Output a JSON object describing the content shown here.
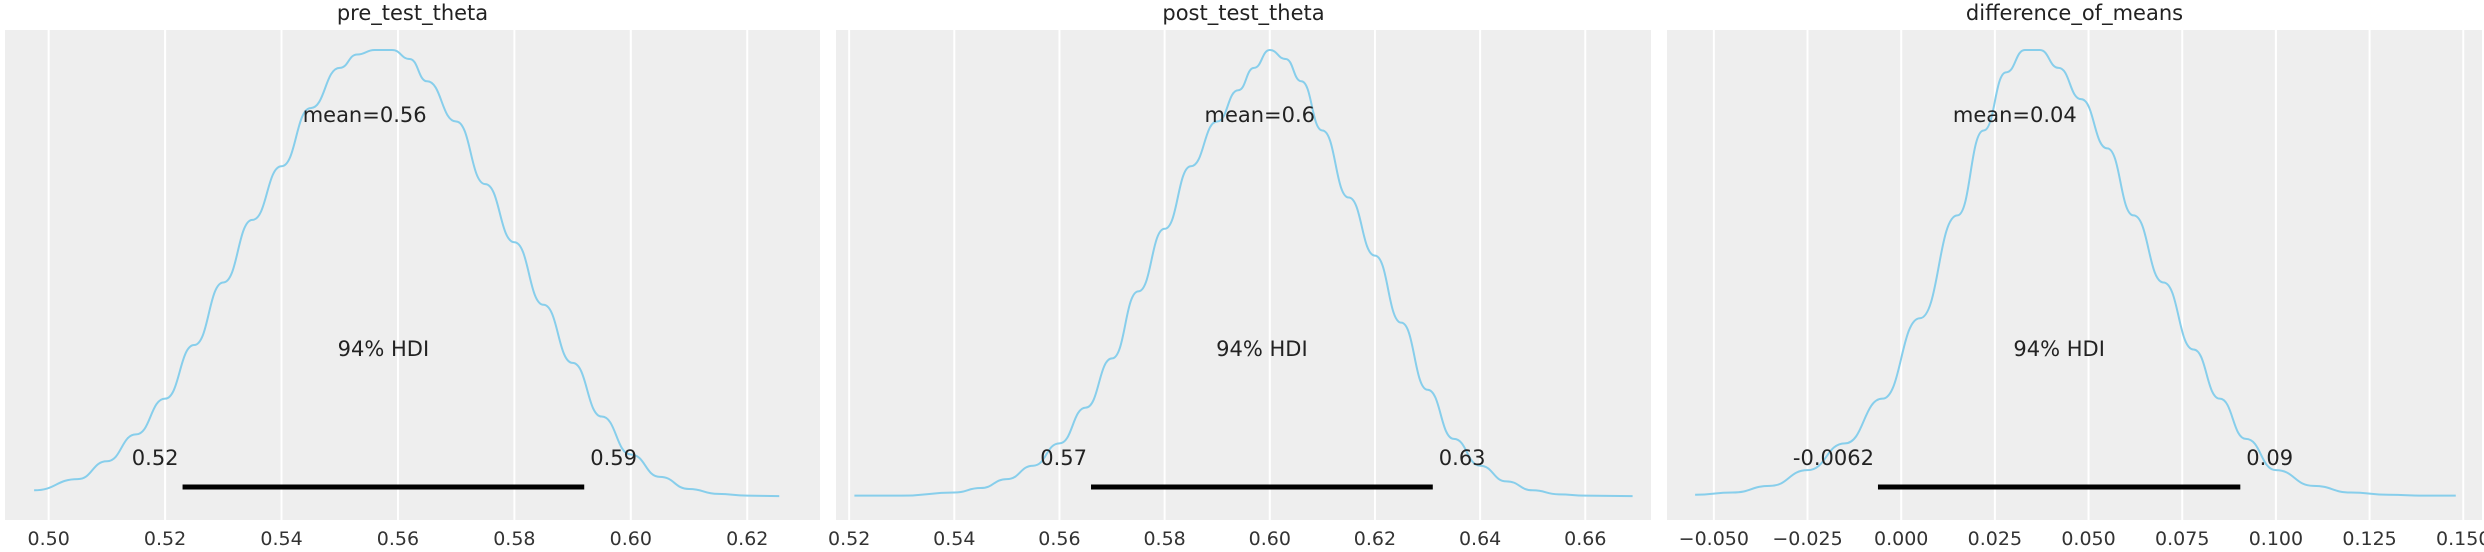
{
  "chart_data": [
    {
      "type": "area",
      "title": "pre_test_theta",
      "xlim": [
        0.4925,
        0.6325
      ],
      "x_ticks": [
        0.5,
        0.52,
        0.54,
        0.56,
        0.58,
        0.6,
        0.62
      ],
      "x_tick_labels": [
        "0.50",
        "0.52",
        "0.54",
        "0.56",
        "0.58",
        "0.60",
        "0.62"
      ],
      "point_estimate_label": "mean=0.56",
      "hdi_label": "94% HDI",
      "hdi": [
        0.523,
        0.592
      ],
      "hdi_low_label": "0.52",
      "hdi_high_label": "0.59",
      "density": {
        "x": [
          0.4975,
          0.505,
          0.51,
          0.515,
          0.52,
          0.525,
          0.53,
          0.535,
          0.54,
          0.545,
          0.55,
          0.553,
          0.556,
          0.559,
          0.562,
          0.565,
          0.57,
          0.575,
          0.58,
          0.585,
          0.59,
          0.595,
          0.6,
          0.605,
          0.61,
          0.615,
          0.62,
          0.6255
        ],
        "y": [
          0.015,
          0.04,
          0.08,
          0.14,
          0.22,
          0.34,
          0.48,
          0.62,
          0.74,
          0.87,
          0.96,
          0.99,
          1.0,
          1.0,
          0.98,
          0.93,
          0.84,
          0.7,
          0.57,
          0.43,
          0.3,
          0.18,
          0.095,
          0.045,
          0.018,
          0.007,
          0.003,
          0.002
        ]
      }
    },
    {
      "type": "area",
      "title": "post_test_theta",
      "xlim": [
        0.5175,
        0.6725
      ],
      "x_ticks": [
        0.52,
        0.54,
        0.56,
        0.58,
        0.6,
        0.62,
        0.64,
        0.66
      ],
      "x_tick_labels": [
        "0.52",
        "0.54",
        "0.56",
        "0.58",
        "0.60",
        "0.62",
        "0.64",
        "0.66"
      ],
      "point_estimate_label": "mean=0.6",
      "hdi_label": "94% HDI",
      "hdi": [
        0.566,
        0.631
      ],
      "hdi_low_label": "0.57",
      "hdi_high_label": "0.63",
      "density": {
        "x": [
          0.521,
          0.53,
          0.54,
          0.545,
          0.55,
          0.555,
          0.56,
          0.565,
          0.57,
          0.575,
          0.58,
          0.585,
          0.59,
          0.594,
          0.597,
          0.6,
          0.603,
          0.606,
          0.61,
          0.615,
          0.62,
          0.625,
          0.63,
          0.635,
          0.64,
          0.645,
          0.65,
          0.655,
          0.66,
          0.669
        ],
        "y": [
          0.003,
          0.003,
          0.01,
          0.02,
          0.04,
          0.07,
          0.12,
          0.2,
          0.31,
          0.46,
          0.6,
          0.74,
          0.84,
          0.91,
          0.96,
          1.0,
          0.98,
          0.93,
          0.82,
          0.67,
          0.54,
          0.39,
          0.24,
          0.13,
          0.07,
          0.035,
          0.015,
          0.006,
          0.003,
          0.002
        ]
      }
    },
    {
      "type": "area",
      "title": "difference_of_means",
      "xlim": [
        -0.0625,
        0.155
      ],
      "x_ticks": [
        -0.05,
        -0.025,
        0.0,
        0.025,
        0.05,
        0.075,
        0.1,
        0.125,
        0.15
      ],
      "x_tick_labels": [
        "−0.050",
        "−0.025",
        "0.000",
        "0.025",
        "0.050",
        "0.075",
        "0.100",
        "0.125",
        "0.150"
      ],
      "point_estimate_label": "mean=0.04",
      "hdi_label": "94% HDI",
      "hdi": [
        -0.0062,
        0.0905
      ],
      "hdi_low_label": "-0.0062",
      "hdi_high_label": "0.09",
      "density": {
        "x": [
          -0.055,
          -0.045,
          -0.035,
          -0.025,
          -0.015,
          -0.005,
          0.005,
          0.015,
          0.022,
          0.028,
          0.033,
          0.037,
          0.042,
          0.048,
          0.055,
          0.062,
          0.07,
          0.078,
          0.085,
          0.092,
          0.1,
          0.11,
          0.12,
          0.13,
          0.14,
          0.148
        ],
        "y": [
          0.005,
          0.01,
          0.025,
          0.06,
          0.12,
          0.22,
          0.4,
          0.63,
          0.82,
          0.95,
          1.0,
          1.0,
          0.96,
          0.89,
          0.78,
          0.63,
          0.48,
          0.33,
          0.22,
          0.13,
          0.06,
          0.025,
          0.01,
          0.005,
          0.003,
          0.003
        ]
      }
    }
  ],
  "colors": {
    "plot_background": "#eeeeee",
    "grid": "#ffffff",
    "density_line": "#87ceeb",
    "hdi_bar": "#000000",
    "text": "#222222"
  }
}
